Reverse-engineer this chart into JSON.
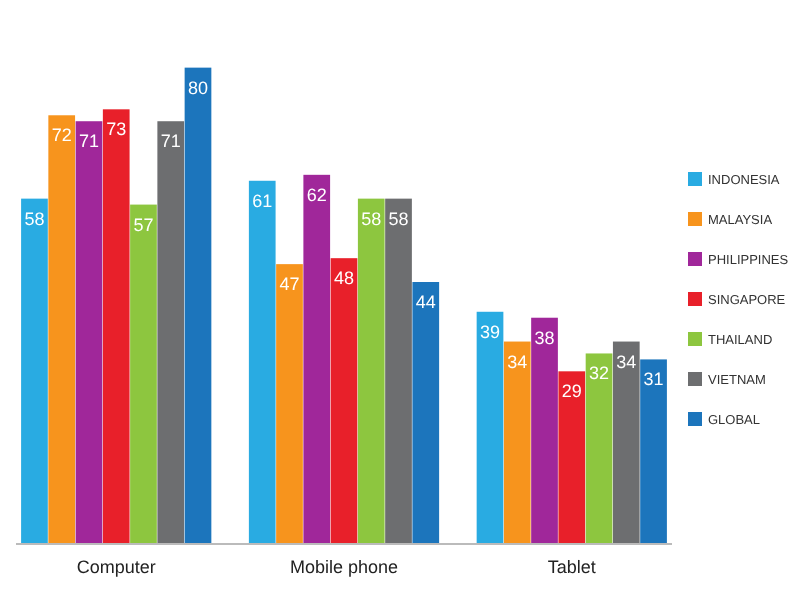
{
  "chart_data": {
    "type": "bar",
    "categories": [
      "Computer",
      "Mobile phone",
      "Tablet"
    ],
    "series": [
      {
        "name": "INDONESIA",
        "color": "#29abe2",
        "values": [
          58,
          61,
          39
        ]
      },
      {
        "name": "MALAYSIA",
        "color": "#f7941d",
        "values": [
          72,
          47,
          34
        ]
      },
      {
        "name": "PHILIPPINES",
        "color": "#a0279a",
        "values": [
          71,
          62,
          38
        ]
      },
      {
        "name": "SINGAPORE",
        "color": "#e8202a",
        "values": [
          73,
          48,
          29
        ]
      },
      {
        "name": "THAILAND",
        "color": "#8dc63f",
        "values": [
          57,
          58,
          32
        ]
      },
      {
        "name": "VIETNAM",
        "color": "#6d6e70",
        "values": [
          71,
          58,
          34
        ]
      },
      {
        "name": "GLOBAL",
        "color": "#1c75bc",
        "values": [
          80,
          44,
          31
        ]
      }
    ],
    "data_labels": true,
    "legend": "right",
    "tick_labels": "x"
  }
}
